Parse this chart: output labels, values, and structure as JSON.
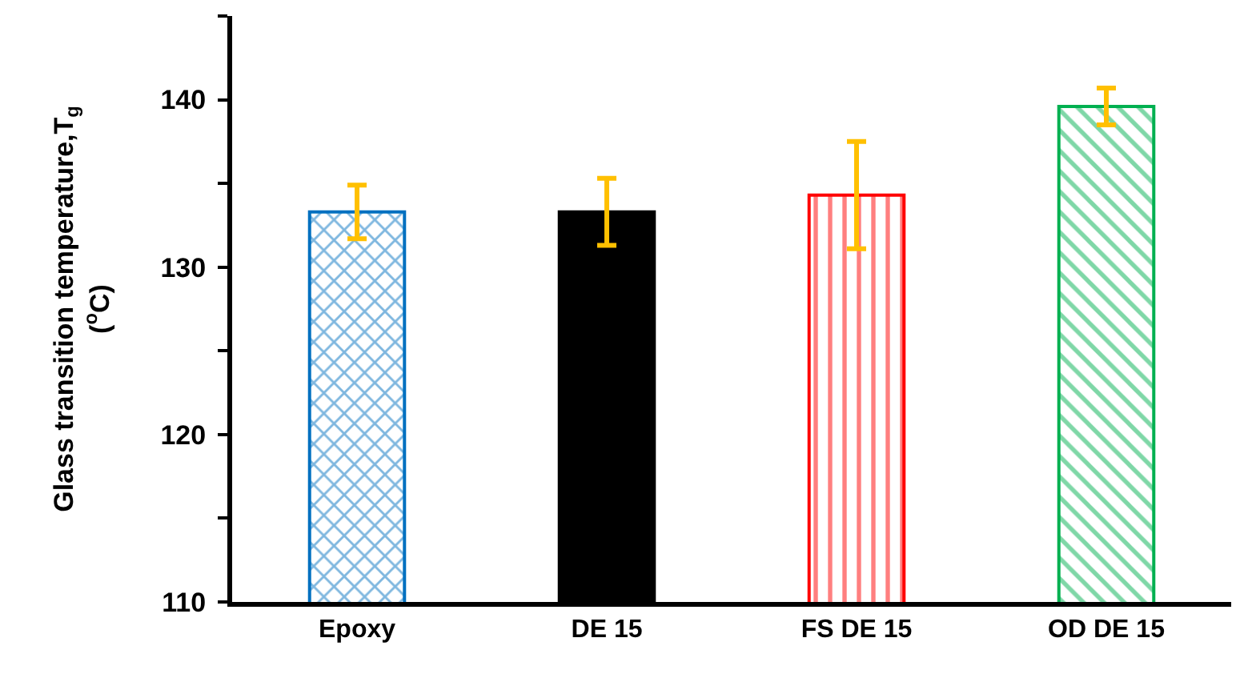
{
  "chart_data": {
    "type": "bar",
    "ylabel": "Glass transition temperature,T$_{g}$\n($^{o}$C)",
    "categories": [
      "Epoxy",
      "DE 15",
      "FS DE 15",
      "OD DE 15"
    ],
    "values": [
      133.3,
      133.3,
      134.3,
      139.6
    ],
    "errors": [
      1.6,
      2.0,
      3.2,
      1.1
    ],
    "colors": [
      "#0070c0",
      "#000000",
      "#ff0000",
      "#00b050"
    ],
    "ylim": [
      110,
      145
    ],
    "yticks": [
      110,
      {
        "value": 115,
        "label": null
      },
      120,
      {
        "value": 125,
        "label": null
      },
      130,
      {
        "value": 135,
        "label": null
      },
      140,
      {
        "value": 145,
        "label": null
      }
    ],
    "grid": false
  }
}
